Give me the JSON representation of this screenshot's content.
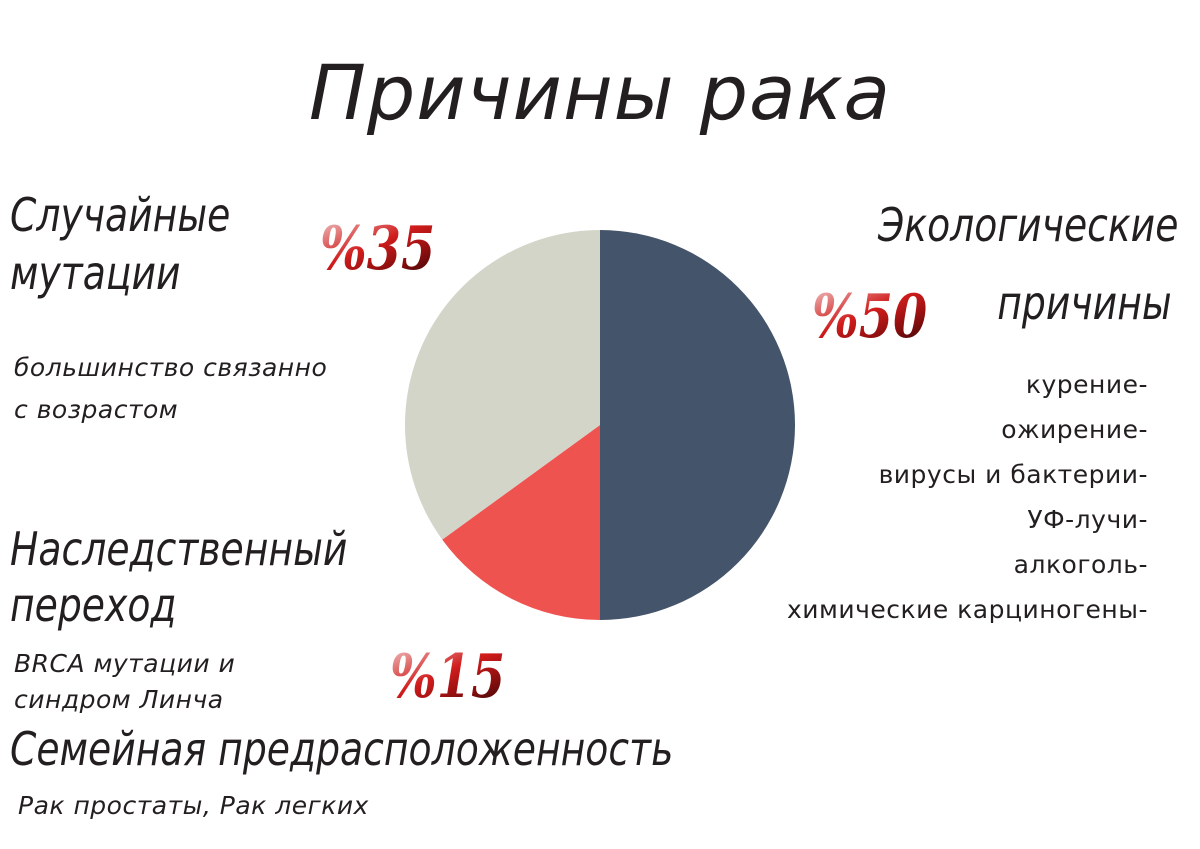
{
  "title": "Причины рака",
  "chart_data": {
    "type": "pie",
    "slices": [
      {
        "label": "Экологические причины",
        "value": 50,
        "percent_label": "%50",
        "color": "#44546a"
      },
      {
        "label": "Наследственный переход",
        "value": 15,
        "percent_label": "%15",
        "color": "#ef5350"
      },
      {
        "label": "Случайные мутации",
        "value": 35,
        "percent_label": "%35",
        "color": "#d3d5c9"
      }
    ]
  },
  "random": {
    "heading_line1": "Случайные",
    "heading_line2": "мутации",
    "sub_line1": "большинство связанно",
    "sub_line2": "с возрастом"
  },
  "environmental": {
    "heading_line1": "Экологические",
    "heading_line2": "причины",
    "items": [
      "курение-",
      "ожирение-",
      "вирусы и бактерии-",
      "УФ-лучи-",
      "алкоголь-",
      "химические карциногены-"
    ]
  },
  "hereditary": {
    "heading_line1": "Наследственный",
    "heading_line2": "переход",
    "sub_line1": "BRCA мутации и",
    "sub_line2": "синдром Линча"
  },
  "family": {
    "heading": "Семейная предрасположенность",
    "sub": "Рак простаты, Рак легких"
  }
}
